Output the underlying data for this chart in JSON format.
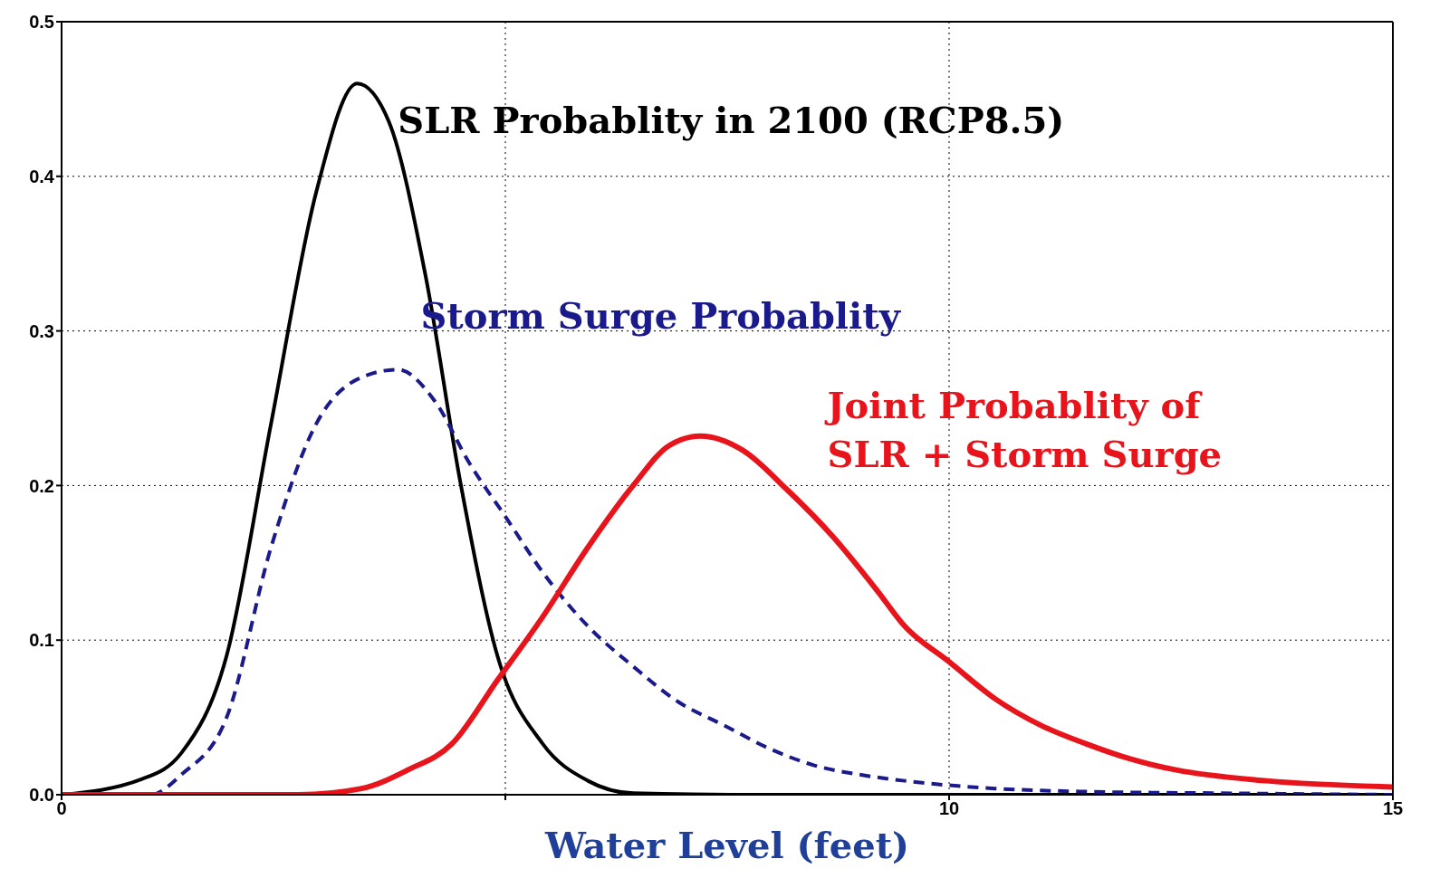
{
  "chart_data": {
    "type": "line",
    "xlabel": "Water Level (feet)",
    "xlim": [
      0,
      15
    ],
    "ylim": [
      0,
      0.5
    ],
    "xticks": [
      0,
      {
        "value": 5,
        "label": null
      },
      10,
      15
    ],
    "yticks": [
      {
        "value": 0,
        "label": "0.0"
      },
      {
        "value": 0.1,
        "label": "0.1"
      },
      {
        "value": 0.2,
        "label": "0.2"
      },
      {
        "value": 0.3,
        "label": "0.3"
      },
      {
        "value": 0.4,
        "label": "0.4"
      },
      {
        "value": 0.5,
        "label": "0.5"
      }
    ],
    "grid": true,
    "marker": "none",
    "series": [
      {
        "name": "SLR Probablity in 2100 (RCP8.5)",
        "color": "#000000",
        "line_style": "solid",
        "x": [
          0,
          0.9,
          1.35,
          1.86,
          2.36,
          2.87,
          3.33,
          3.69,
          4.1,
          4.5,
          4.91,
          5.42,
          5.93,
          6.44,
          8,
          10,
          12,
          15
        ],
        "values": [
          0,
          0.01,
          0.027,
          0.09,
          0.24,
          0.39,
          0.46,
          0.435,
          0.336,
          0.2,
          0.09,
          0.033,
          0.009,
          0.001,
          0,
          0,
          0,
          0
        ]
      },
      {
        "name": "Storm Surge Probablity",
        "color": "#1a1a8c",
        "line_style": "dashed",
        "x": [
          0,
          1,
          1.35,
          1.86,
          2.36,
          2.87,
          3.38,
          3.79,
          4.2,
          4.6,
          5.0,
          5.42,
          5.93,
          6.44,
          6.95,
          7.46,
          7.97,
          8.48,
          8.99,
          9.5,
          10.52,
          11.54,
          13.07,
          15
        ],
        "values": [
          0,
          0,
          0.013,
          0.05,
          0.16,
          0.24,
          0.27,
          0.275,
          0.255,
          0.214,
          0.18,
          0.144,
          0.109,
          0.083,
          0.06,
          0.045,
          0.03,
          0.019,
          0.013,
          0.009,
          0.004,
          0.002,
          0.001,
          0
        ]
      },
      {
        "name": "Joint Probablity of\nSLR + Storm Surge",
        "color": "#e8141c",
        "line_style": "solid",
        "x": [
          0,
          2.67,
          3.38,
          3.9,
          4.4,
          4.91,
          5.42,
          5.93,
          6.44,
          6.85,
          7.2,
          7.67,
          8.18,
          8.69,
          9.19,
          9.5,
          10.0,
          10.52,
          11.03,
          11.54,
          12.05,
          12.56,
          13.58,
          15
        ],
        "values": [
          0,
          0,
          0.004,
          0.016,
          0.033,
          0.074,
          0.115,
          0.16,
          0.2,
          0.226,
          0.232,
          0.223,
          0.197,
          0.167,
          0.132,
          0.109,
          0.086,
          0.062,
          0.045,
          0.033,
          0.023,
          0.016,
          0.009,
          0.005
        ]
      }
    ]
  }
}
